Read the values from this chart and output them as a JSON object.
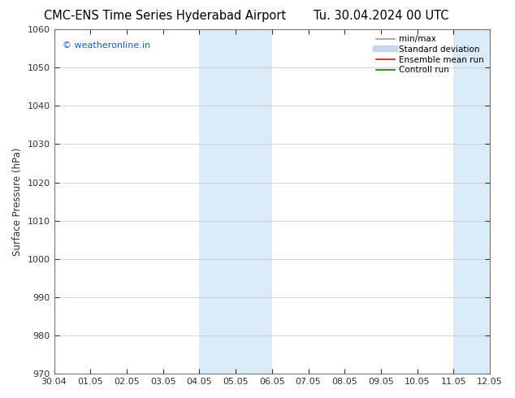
{
  "title_left": "CMC-ENS Time Series Hyderabad Airport",
  "title_right": "Tu. 30.04.2024 00 UTC",
  "ylabel": "Surface Pressure (hPa)",
  "xlim": [
    0,
    12
  ],
  "ylim": [
    970,
    1060
  ],
  "yticks": [
    970,
    980,
    990,
    1000,
    1010,
    1020,
    1030,
    1040,
    1050,
    1060
  ],
  "xtick_labels": [
    "30.04",
    "01.05",
    "02.05",
    "03.05",
    "04.05",
    "05.05",
    "06.05",
    "07.05",
    "08.05",
    "09.05",
    "10.05",
    "11.05",
    "12.05"
  ],
  "xtick_positions": [
    0,
    1,
    2,
    3,
    4,
    5,
    6,
    7,
    8,
    9,
    10,
    11,
    12
  ],
  "shaded_regions": [
    {
      "x_start": 4,
      "x_end": 6,
      "color": "#daeaf7"
    },
    {
      "x_start": 11,
      "x_end": 12,
      "color": "#daeaf7"
    }
  ],
  "watermark_text": "© weatheronline.in",
  "watermark_color": "#1a5adb",
  "legend_entries": [
    {
      "label": "min/max",
      "color": "#999999",
      "linestyle": "-",
      "linewidth": 1.2
    },
    {
      "label": "Standard deviation",
      "color": "#c5d9ec",
      "linestyle": "-",
      "linewidth": 6
    },
    {
      "label": "Ensemble mean run",
      "color": "red",
      "linestyle": "-",
      "linewidth": 1.2
    },
    {
      "label": "Controll run",
      "color": "green",
      "linestyle": "-",
      "linewidth": 1.2
    }
  ],
  "background_color": "#ffffff",
  "grid_color": "#cccccc",
  "tick_color": "#333333",
  "spine_color": "#777777",
  "title_fontsize": 10.5,
  "label_fontsize": 8.5,
  "tick_fontsize": 8,
  "watermark_fontsize": 8,
  "legend_fontsize": 7.5
}
